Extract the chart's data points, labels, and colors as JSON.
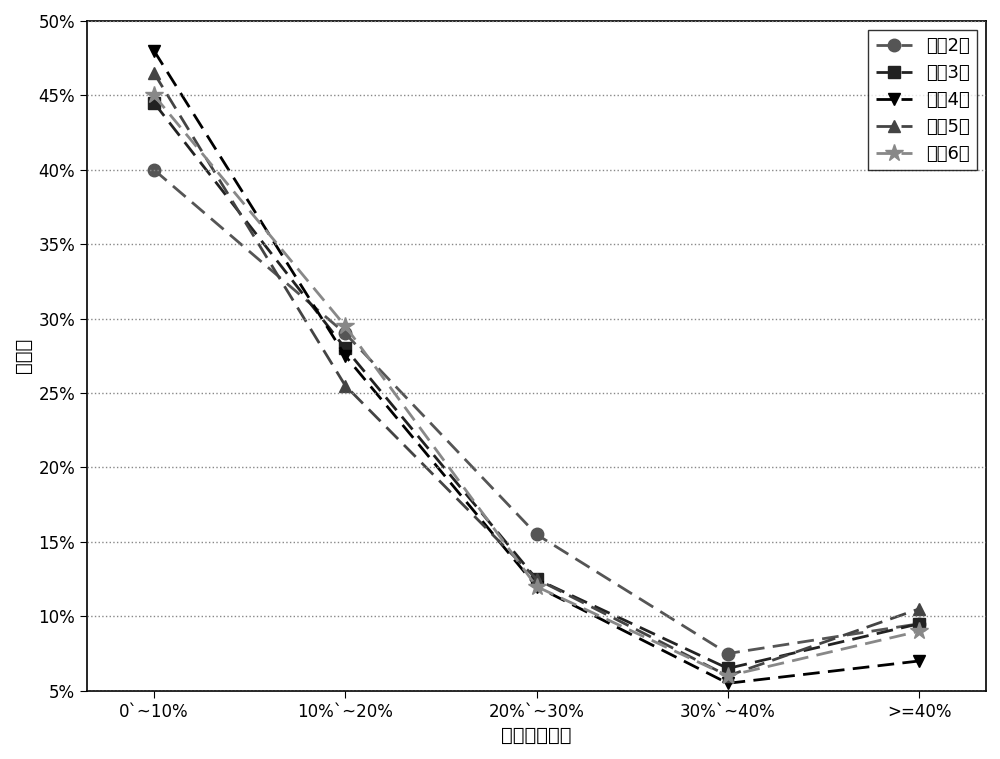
{
  "x_labels": [
    "0~10%",
    "10%~20%",
    "20%~30%",
    "30%~40%",
    ">=40%"
  ],
  "x_labels_display": [
    "0＾10%",
    "10%＾20%",
    "20%＾30%",
    "30%＾40%",
    ">=40%"
  ],
  "series": [
    {
      "label": "预测2月",
      "values": [
        40,
        29,
        15.5,
        7.5,
        9.5
      ],
      "color": "#555555",
      "marker": "o",
      "linestyle": "--"
    },
    {
      "label": "预测3月",
      "values": [
        44.5,
        28,
        12.5,
        6.5,
        9.5
      ],
      "color": "#222222",
      "marker": "s",
      "linestyle": "--"
    },
    {
      "label": "预测4月",
      "values": [
        48,
        27.5,
        12,
        5.5,
        7
      ],
      "color": "#000000",
      "marker": "v",
      "linestyle": "--"
    },
    {
      "label": "预测5月",
      "values": [
        46.5,
        25.5,
        12.5,
        6,
        10.5
      ],
      "color": "#444444",
      "marker": "^",
      "linestyle": "--"
    },
    {
      "label": "预测6月",
      "values": [
        45,
        29.5,
        12,
        6,
        9
      ],
      "color": "#888888",
      "marker": "*",
      "linestyle": "--"
    }
  ],
  "ylabel": "百分比",
  "xlabel": "相对误差区间",
  "ylim": [
    5,
    50
  ],
  "yticks": [
    5,
    10,
    15,
    20,
    25,
    30,
    35,
    40,
    45,
    50
  ],
  "ytick_labels": [
    "5%",
    "10%",
    "15%",
    "20%",
    "25%",
    "30%",
    "35%",
    "40%",
    "45%",
    "50%"
  ],
  "background_color": "#ffffff",
  "grid_color": "#888888",
  "legend_loc": "upper right",
  "label_fontsize": 14,
  "tick_fontsize": 12,
  "legend_fontsize": 13,
  "linewidth": 2.0,
  "markersize": 9
}
